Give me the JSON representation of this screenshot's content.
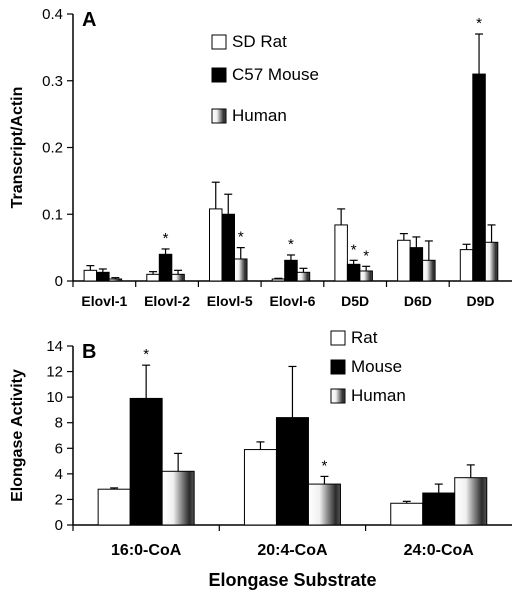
{
  "chart_data": [
    {
      "panel": "A",
      "type": "bar",
      "ylabel": "Transcript/Actin",
      "xlabel": "",
      "ylim": [
        0,
        0.4
      ],
      "yticks": [
        "0",
        "0.1",
        "0.2",
        "0.3",
        "0.4"
      ],
      "categories": [
        "Elovl-1",
        "Elovl-2",
        "Elovl-5",
        "Elovl-6",
        "D5D",
        "D6D",
        "D9D"
      ],
      "series": [
        {
          "name": "SD Rat",
          "values": [
            0.016,
            0.01,
            0.108,
            0.003,
            0.084,
            0.061,
            0.047
          ],
          "errors": [
            0.007,
            0.004,
            0.04,
            0.001,
            0.024,
            0.01,
            0.008
          ]
        },
        {
          "name": "C57 Mouse",
          "values": [
            0.013,
            0.04,
            0.1,
            0.031,
            0.025,
            0.05,
            0.31
          ],
          "errors": [
            0.005,
            0.008,
            0.03,
            0.008,
            0.006,
            0.016,
            0.06
          ]
        },
        {
          "name": "Human",
          "values": [
            0.003,
            0.01,
            0.033,
            0.013,
            0.015,
            0.031,
            0.058
          ],
          "errors": [
            0.002,
            0.006,
            0.017,
            0.006,
            0.007,
            0.029,
            0.026
          ]
        }
      ],
      "significance": [
        {
          "category": "Elovl-2",
          "series": "C57 Mouse"
        },
        {
          "category": "Elovl-5",
          "series": "Human"
        },
        {
          "category": "Elovl-6",
          "series": "C57 Mouse"
        },
        {
          "category": "D5D",
          "series": "C57 Mouse"
        },
        {
          "category": "D5D",
          "series": "Human"
        },
        {
          "category": "D9D",
          "series": "C57 Mouse"
        }
      ],
      "significance_symbol": "*",
      "legend": "top-left"
    },
    {
      "panel": "B",
      "type": "bar",
      "ylabel": "Elongase Activity",
      "xlabel": "Elongase Substrate",
      "ylim": [
        0,
        14
      ],
      "yticks": [
        "0",
        "2",
        "4",
        "6",
        "8",
        "10",
        "12",
        "14"
      ],
      "categories": [
        "16:0-CoA",
        "20:4-CoA",
        "24:0-CoA"
      ],
      "series": [
        {
          "name": "Rat",
          "values": [
            2.8,
            5.9,
            1.7
          ],
          "errors": [
            0.1,
            0.6,
            0.15
          ]
        },
        {
          "name": "Mouse",
          "values": [
            9.9,
            8.4,
            2.5
          ],
          "errors": [
            2.6,
            4.0,
            0.7
          ]
        },
        {
          "name": "Human",
          "values": [
            4.2,
            3.2,
            3.7
          ],
          "errors": [
            1.4,
            0.6,
            1.0
          ]
        }
      ],
      "significance": [
        {
          "category": "16:0-CoA",
          "series": "Mouse"
        },
        {
          "category": "20:4-CoA",
          "series": "Human"
        }
      ],
      "significance_symbol": "*",
      "legend": "top-right"
    }
  ]
}
